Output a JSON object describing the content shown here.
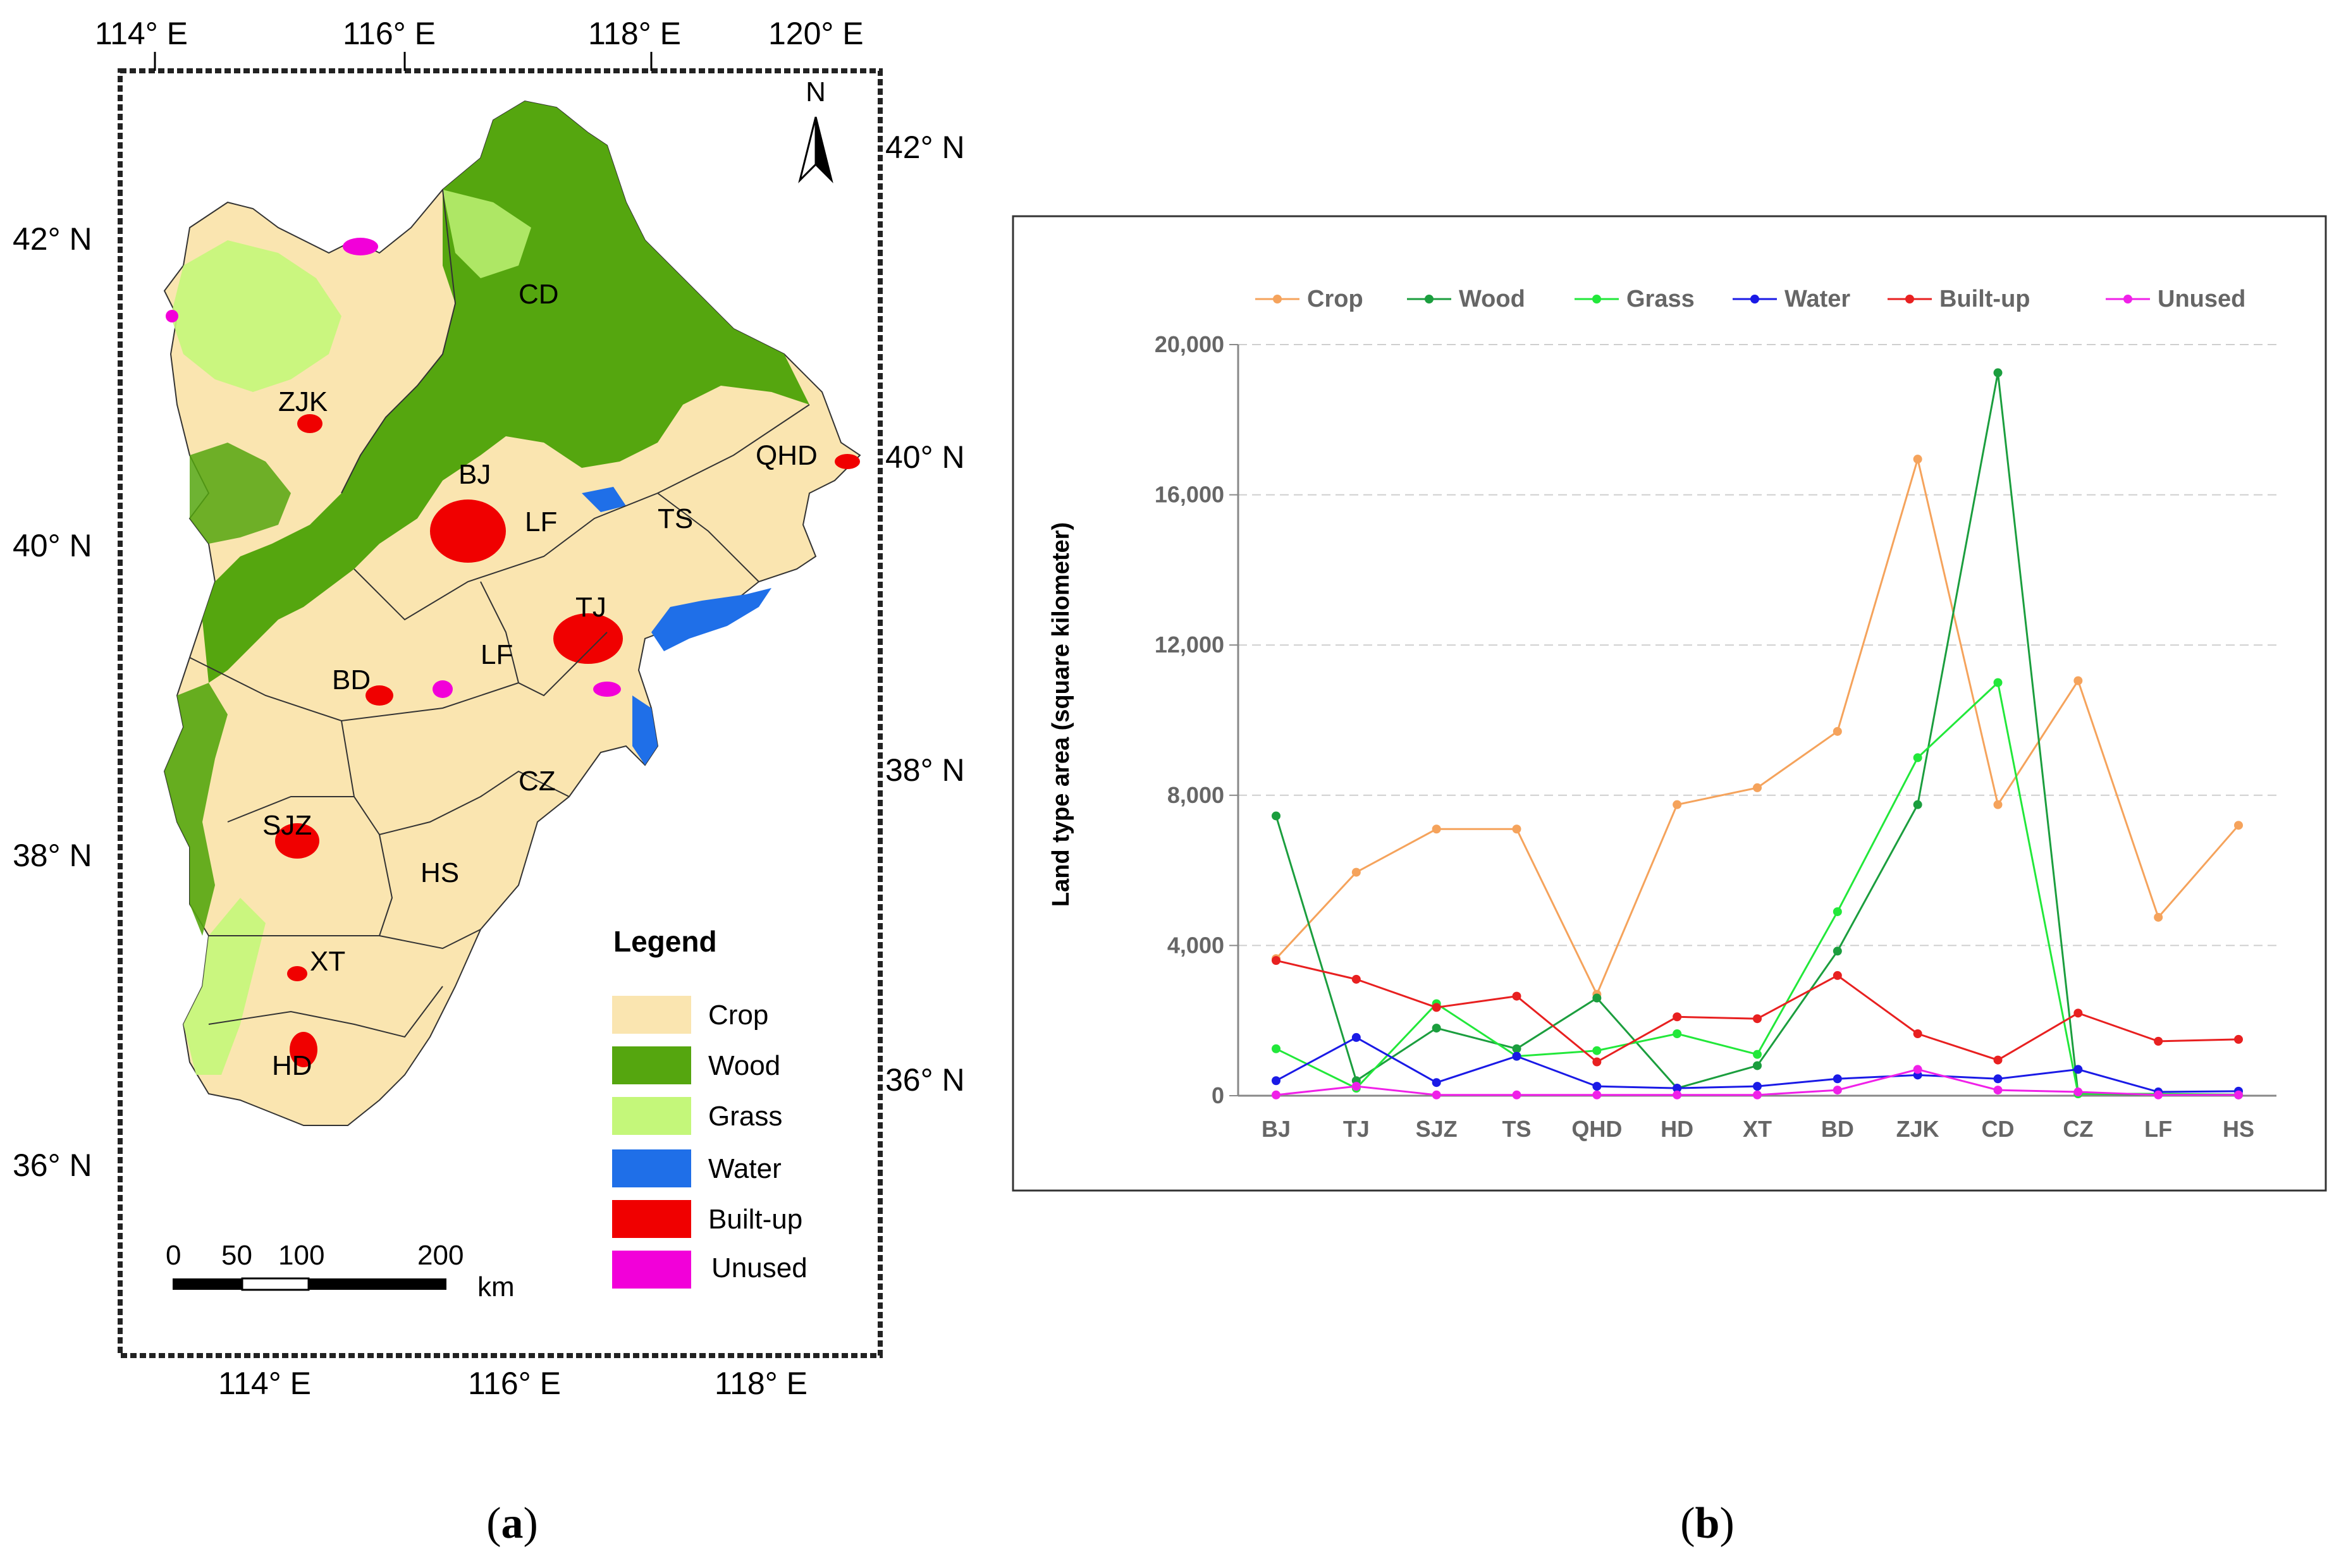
{
  "map": {
    "top_lon_labels": [
      "114° E",
      "116° E",
      "118° E",
      "120° E"
    ],
    "bottom_lon_labels": [
      "114° E",
      "116° E",
      "118° E"
    ],
    "left_lat_labels": [
      "42° N",
      "40° N",
      "38° N",
      "36° N"
    ],
    "right_lat_labels": [
      "42° N",
      "40° N",
      "38° N",
      "36° N"
    ],
    "north_label": "N",
    "cities": [
      "CD",
      "ZJK",
      "QHD",
      "BJ",
      "LF",
      "TS",
      "TJ",
      "LF",
      "BD",
      "CZ",
      "SJZ",
      "HS",
      "XT",
      "HD"
    ],
    "legend_title": "Legend",
    "legend": [
      {
        "label": "Crop",
        "color": "#FAE5B0"
      },
      {
        "label": "Wood",
        "color": "#55A60F"
      },
      {
        "label": "Grass",
        "color": "#C4F77A"
      },
      {
        "label": "Water",
        "color": "#1F6FE8"
      },
      {
        "label": "Built-up",
        "color": "#F00000"
      },
      {
        "label": "Unused",
        "color": "#F200D9"
      }
    ],
    "scale_ticks": [
      "0",
      "50",
      "100",
      "200"
    ],
    "scale_unit": "km"
  },
  "captions": {
    "a": "a",
    "b": "b"
  },
  "chart_data": {
    "type": "line",
    "categories": [
      "BJ",
      "TJ",
      "SJZ",
      "TS",
      "QHD",
      "HD",
      "XT",
      "BD",
      "ZJK",
      "CD",
      "CZ",
      "LF",
      "HS"
    ],
    "ylabel": "Land type area  (square kilometer)",
    "xlabel": "",
    "title": "",
    "ylim": [
      0,
      20000
    ],
    "yticks": [
      0,
      4000,
      8000,
      12000,
      16000,
      20000
    ],
    "ytick_labels": [
      "0",
      "4,000",
      "8,000",
      "12,000",
      "16,000",
      "20,000"
    ],
    "legend_position": "top",
    "grid": "horizontal dashed",
    "series": [
      {
        "name": "Crop",
        "color": "#F5A35C",
        "values": [
          3650,
          5950,
          7100,
          7100,
          2700,
          7750,
          8200,
          9700,
          16950,
          7750,
          11050,
          4750,
          7200
        ]
      },
      {
        "name": "Wood",
        "color": "#1B9E3E",
        "values": [
          7450,
          400,
          1800,
          1250,
          2600,
          200,
          800,
          3850,
          7750,
          19250,
          50,
          30,
          20
        ]
      },
      {
        "name": "Grass",
        "color": "#22E83A",
        "values": [
          1250,
          200,
          2450,
          1050,
          1200,
          1650,
          1100,
          4900,
          9000,
          11000,
          50,
          50,
          30
        ]
      },
      {
        "name": "Water",
        "color": "#1A1AE6",
        "values": [
          400,
          1550,
          350,
          1050,
          250,
          200,
          250,
          450,
          550,
          450,
          700,
          100,
          120
        ]
      },
      {
        "name": "Built-up",
        "color": "#E82020",
        "values": [
          3600,
          3100,
          2350,
          2650,
          900,
          2100,
          2050,
          3200,
          1650,
          950,
          2200,
          1450,
          1500
        ]
      },
      {
        "name": "Unused",
        "color": "#F020E8",
        "values": [
          20,
          250,
          20,
          20,
          20,
          20,
          20,
          150,
          700,
          150,
          100,
          20,
          20
        ]
      }
    ]
  }
}
